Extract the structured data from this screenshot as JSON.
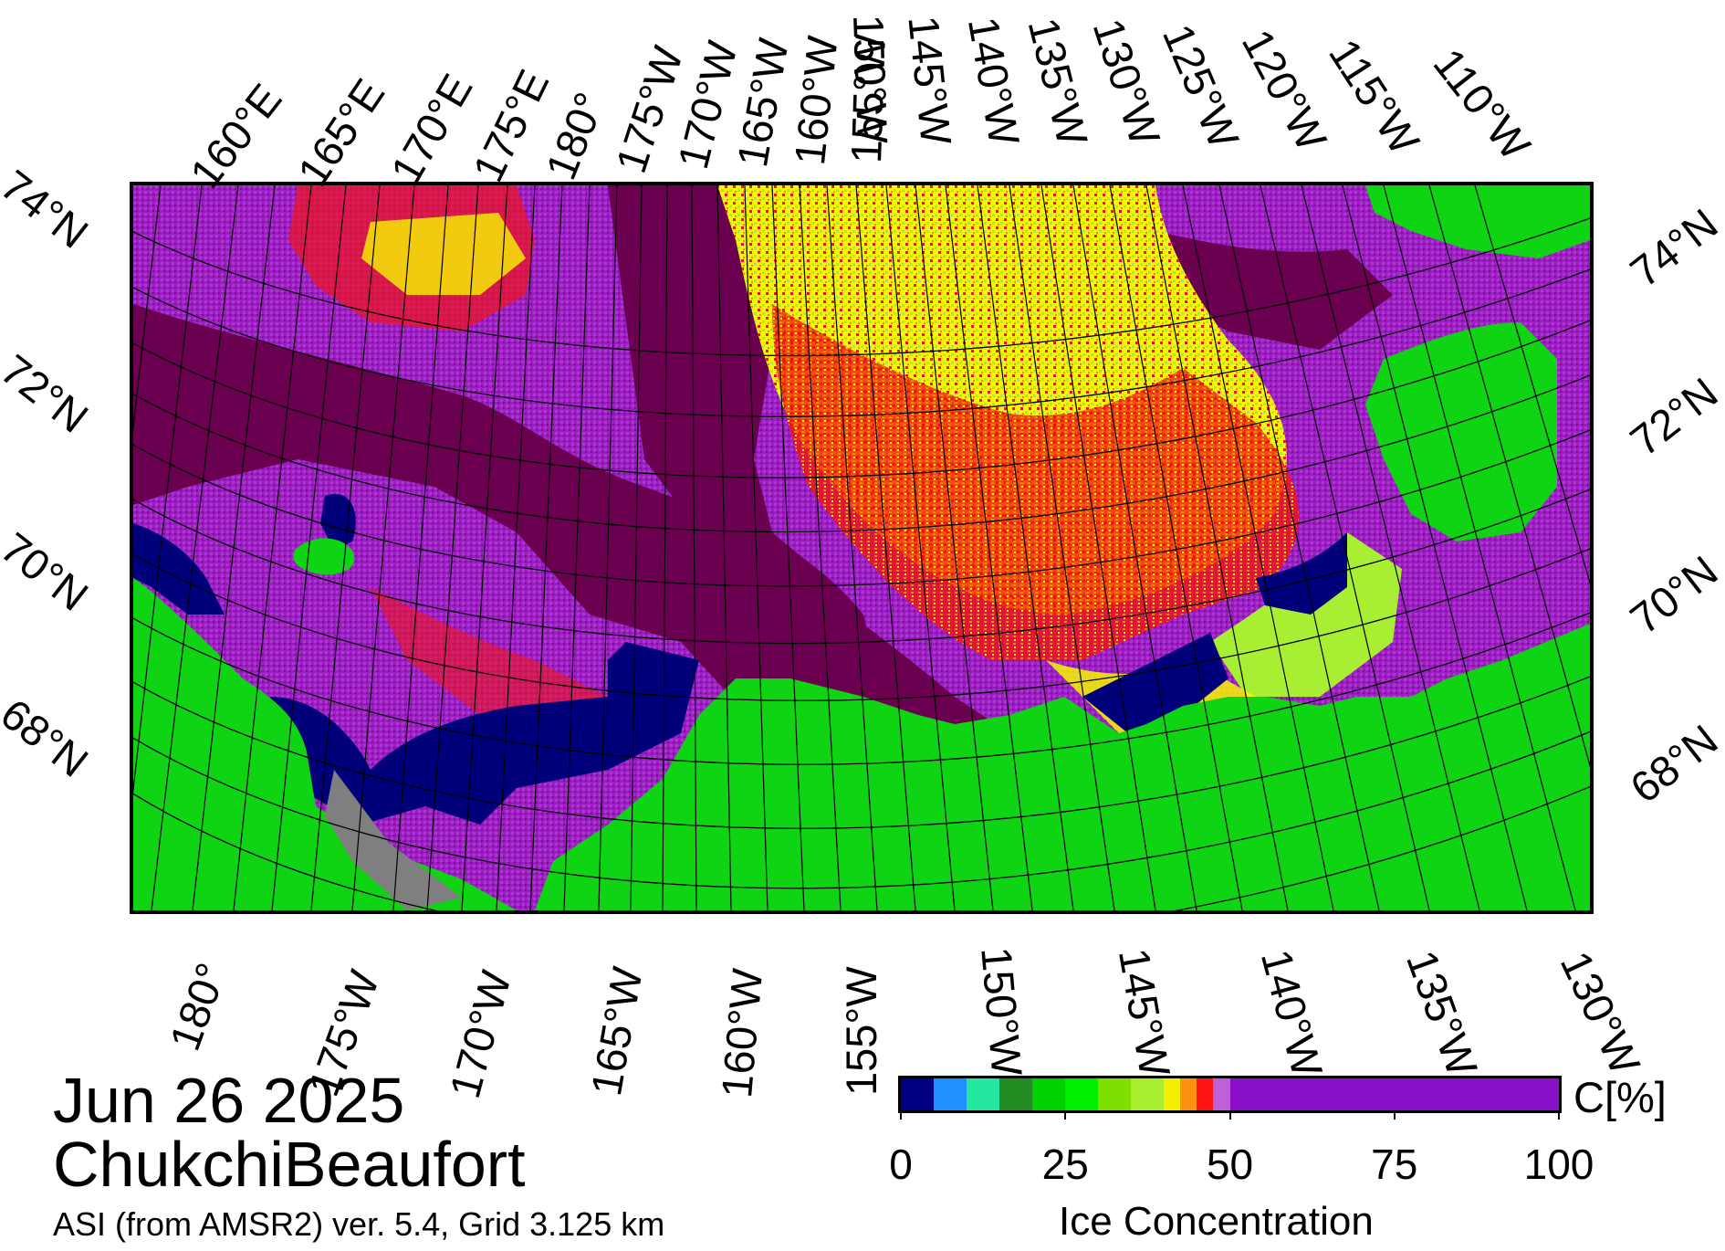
{
  "map": {
    "date": "Jun 26 2025",
    "region": "ChukchiBeaufort",
    "source": "ASI (from AMSR2) ver. 5.4,  Grid 3.125 km",
    "top_longitude_labels": [
      "160°E",
      "165°E",
      "170°E",
      "175°E",
      "180°",
      "175°W",
      "170°W",
      "165°W",
      "160°W",
      "155°W",
      "150°W",
      "145°W",
      "140°W",
      "135°W",
      "130°W",
      "125°W",
      "120°W",
      "115°W",
      "110°W"
    ],
    "bottom_longitude_labels": [
      "180°",
      "175°W",
      "170°W",
      "165°W",
      "160°W",
      "155°W",
      "150°W",
      "145°W",
      "140°W",
      "135°W",
      "130°W"
    ],
    "left_latitude_labels": [
      "74°N",
      "72°N",
      "70°N",
      "68°N"
    ],
    "right_latitude_labels": [
      "74°N",
      "72°N",
      "70°N",
      "68°N"
    ],
    "colors": {
      "land": "#0fd414",
      "ice_100": "#6b0050",
      "ice_95": "#9a1dc6",
      "ice_90": "#c257d8",
      "ice_85": "#f0141a",
      "ice_80": "#f8820e",
      "ice_75": "#f7f700",
      "ice_60": "#a8ef33",
      "ice_55": "#80e020",
      "open_water": "#00007b",
      "no_data": "#7f7f7f"
    }
  },
  "colorbar": {
    "title": "Ice Concentration",
    "unit": "C[%]",
    "tick_labels": [
      "0",
      "25",
      "50",
      "75",
      "100"
    ],
    "tick_values": [
      0,
      25,
      50,
      75,
      100
    ],
    "colors": [
      "#000080",
      "#1e90ff",
      "#25e8a0",
      "#228b22",
      "#00d000",
      "#00ef00",
      "#7ee000",
      "#a8ee30",
      "#f2f000",
      "#ff9010",
      "#ff1414",
      "#c060d8",
      "#8a10c8"
    ],
    "bounds": [
      0,
      10,
      20,
      30,
      40,
      50,
      60,
      70,
      80,
      85,
      90,
      95,
      100
    ]
  }
}
